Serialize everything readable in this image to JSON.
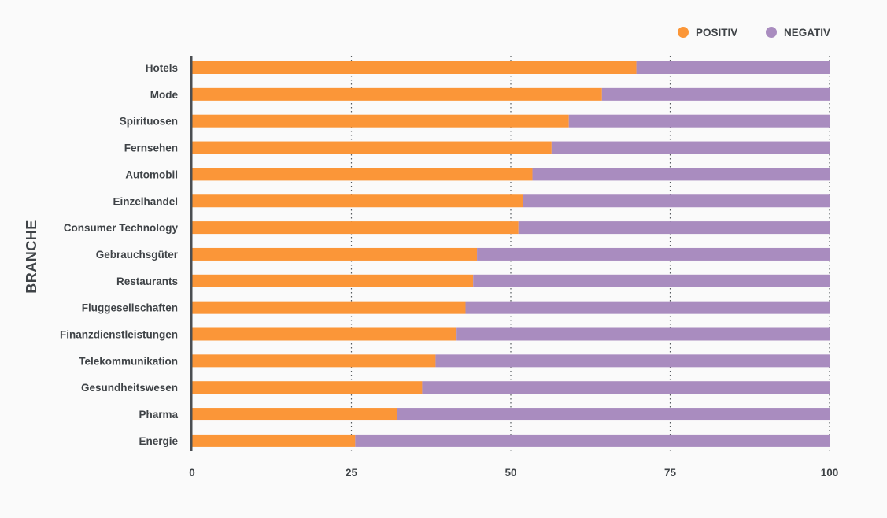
{
  "chart_data": {
    "type": "bar",
    "orientation": "horizontal",
    "stacked": true,
    "ylabel": "BRANCHE",
    "xlabel": "",
    "xlim": [
      0,
      100
    ],
    "xticks": [
      0,
      25,
      50,
      75,
      100
    ],
    "grid": "vertical dotted",
    "legend_position": "top-right",
    "categories": [
      "Hotels",
      "Mode",
      "Spirituosen",
      "Fernsehen",
      "Automobil",
      "Einzelhandel",
      "Consumer Technology",
      "Gebrauchsgüter",
      "Restaurants",
      "Fluggesellschaften",
      "Finanzdienstleistungen",
      "Telekommunikation",
      "Gesundheitswesen",
      "Pharma",
      "Energie"
    ],
    "series": [
      {
        "name": "POSITIV",
        "color": "#fb9638",
        "values": [
          69.7,
          64.3,
          59.1,
          56.4,
          53.4,
          51.9,
          51.2,
          44.7,
          44.1,
          42.9,
          41.5,
          38.2,
          36.1,
          32.1,
          25.6
        ]
      },
      {
        "name": "NEGATIV",
        "color": "#a98cbf",
        "values": [
          30.3,
          35.7,
          40.9,
          43.6,
          46.6,
          48.1,
          48.8,
          55.3,
          55.9,
          57.1,
          58.5,
          61.8,
          63.9,
          67.9,
          74.4
        ]
      }
    ]
  }
}
